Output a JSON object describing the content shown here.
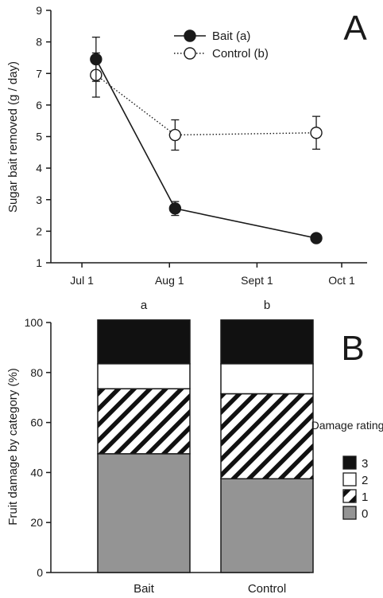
{
  "chart_data": [
    {
      "type": "line",
      "panel_label": "A",
      "ylabel": "Sugar bait removed (g / day)",
      "xlabel": "",
      "ylim": [
        1,
        9
      ],
      "yticks": [
        1,
        2,
        3,
        4,
        5,
        6,
        7,
        8,
        9
      ],
      "xlim": [
        "2000-06-20",
        "2000-10-10"
      ],
      "xticks": [
        {
          "date": "2000-07-01",
          "label": "Jul 1"
        },
        {
          "date": "2000-08-01",
          "label": "Aug 1"
        },
        {
          "date": "2000-09-01",
          "label": "Sept 1"
        },
        {
          "date": "2000-10-01",
          "label": "Oct 1"
        }
      ],
      "legend_position": "top-center",
      "series": [
        {
          "name": "Bait (a)",
          "marker": "filled-circle",
          "line": "solid",
          "color": "#1a1a1a",
          "points": [
            {
              "x": "2000-07-06",
              "y": 7.45,
              "err": 0.7
            },
            {
              "x": "2000-08-03",
              "y": 2.72,
              "err": 0.22
            },
            {
              "x": "2000-09-22",
              "y": 1.78,
              "err": 0.0
            }
          ]
        },
        {
          "name": "Control (b)",
          "marker": "open-circle",
          "line": "dotted",
          "color": "#1a1a1a",
          "points": [
            {
              "x": "2000-07-06",
              "y": 6.95,
              "err": 0.7
            },
            {
              "x": "2000-08-03",
              "y": 5.05,
              "err": 0.48
            },
            {
              "x": "2000-09-22",
              "y": 5.12,
              "err": 0.52
            }
          ]
        }
      ]
    },
    {
      "type": "bar",
      "stacked": true,
      "panel_label": "B",
      "ylabel": "Fruit damage by category (%)",
      "xlabel": "",
      "ylim": [
        0,
        100
      ],
      "yticks": [
        0,
        20,
        40,
        60,
        80,
        100
      ],
      "categories": [
        "Bait",
        "Control"
      ],
      "significance_letters": [
        "a",
        "b"
      ],
      "legend_title": "Damage ratings",
      "legend_position": "right",
      "series": [
        {
          "name": "0",
          "fill": "gray",
          "values": [
            47.5,
            37.5
          ]
        },
        {
          "name": "1",
          "fill": "hatch",
          "values": [
            26.0,
            34.0
          ]
        },
        {
          "name": "2",
          "fill": "white",
          "values": [
            10.0,
            12.0
          ]
        },
        {
          "name": "3",
          "fill": "black",
          "values": [
            17.5,
            17.5
          ]
        }
      ],
      "legend_order": [
        "3",
        "2",
        "1",
        "0"
      ],
      "colors": {
        "gray": "#949494",
        "white": "#ffffff",
        "black": "#111111",
        "hatch_line": "#111111"
      }
    }
  ]
}
